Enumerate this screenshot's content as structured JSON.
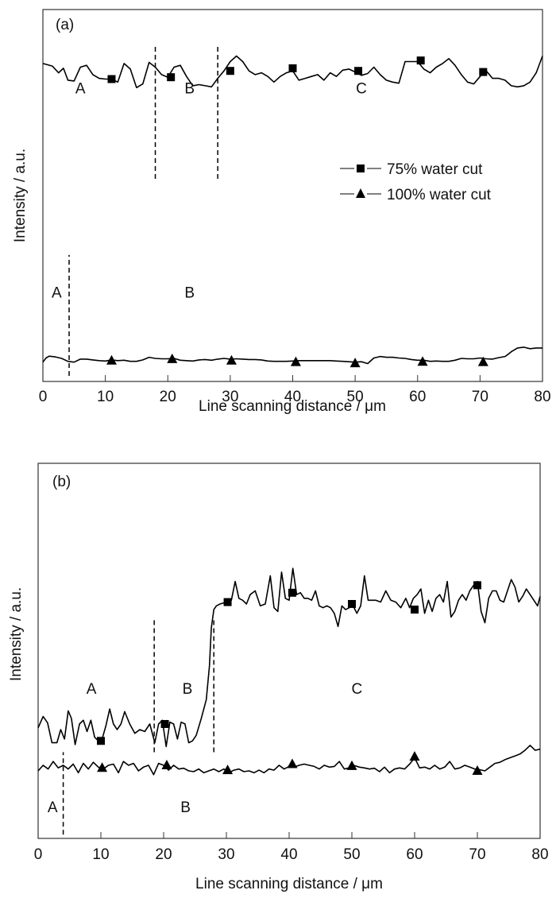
{
  "chart_data": [
    {
      "type": "line",
      "panel_label": "(a)",
      "xlabel": "Line scanning distance / μm",
      "ylabel": "Intensity / a.u.",
      "xlim": [
        0,
        80
      ],
      "ylim": [
        0,
        100
      ],
      "x_ticks": [
        0,
        10,
        20,
        30,
        40,
        50,
        60,
        70,
        80
      ],
      "x_tick_labels": [
        "0",
        "10",
        "20",
        "30",
        "40",
        "50",
        "60",
        "70",
        "80"
      ],
      "grid": false,
      "legend": {
        "placement": "center-right",
        "entries": [
          {
            "label": "75% water cut",
            "marker": "square"
          },
          {
            "label": "100% water cut",
            "marker": "triangle"
          }
        ]
      },
      "series": [
        {
          "name": "75% water cut",
          "marker": "square",
          "x": [
            0,
            1.5,
            2.5,
            3.3,
            4,
            5,
            6,
            7,
            8,
            9,
            10,
            11,
            12,
            13,
            14,
            15,
            16,
            17,
            18,
            19,
            20,
            21,
            22,
            23,
            24,
            25,
            26,
            27,
            28,
            29,
            30,
            31,
            32,
            33,
            34,
            35,
            36,
            37,
            38,
            39,
            40,
            41,
            42,
            43,
            44,
            45,
            46,
            47,
            48,
            49,
            50,
            51,
            52,
            53,
            54,
            55,
            56,
            57,
            58,
            59,
            60,
            61,
            62,
            63,
            64,
            65,
            66,
            67,
            68,
            69,
            70,
            71,
            72,
            73,
            74,
            75,
            76,
            77,
            78,
            79,
            80
          ],
          "y": [
            85.5,
            84.8,
            83,
            84.2,
            81,
            80.8,
            84.5,
            85,
            82.5,
            81.5,
            81.3,
            81.3,
            80.5,
            85.5,
            84,
            79,
            80,
            85.8,
            84.5,
            82.5,
            81.8,
            84.5,
            85,
            82,
            79.5,
            79.8,
            79.5,
            79.2,
            81.5,
            83.5,
            86,
            87.5,
            86,
            83.5,
            82.5,
            83,
            82,
            80.5,
            82,
            83,
            83.5,
            81,
            81.5,
            82,
            82.5,
            81,
            83,
            82,
            83.7,
            84,
            83.2,
            82.3,
            82.8,
            84.5,
            82.5,
            81,
            80.5,
            80.2,
            86,
            86,
            86,
            84,
            83,
            84.5,
            85.5,
            86.8,
            85,
            82.5,
            80.5,
            80,
            82,
            83.5,
            81.5,
            81.5,
            81,
            79.5,
            79.2,
            79.5,
            80.5,
            83,
            87.5
          ],
          "marker_x": [
            11,
            20.5,
            30,
            40,
            50.5,
            60.5,
            70.5
          ],
          "marker_y": [
            81.3,
            81.8,
            83.5,
            84.2,
            83.5,
            86.3,
            83.2
          ]
        },
        {
          "name": "100% water cut",
          "marker": "triangle",
          "x": [
            0,
            0.5,
            1,
            2,
            3,
            4,
            5,
            6,
            7,
            8,
            9,
            10,
            11,
            12,
            13,
            14,
            15,
            16,
            17,
            18,
            19,
            20,
            21,
            22,
            23,
            24,
            25,
            26,
            27,
            28,
            29,
            30,
            31,
            32,
            33,
            34,
            35,
            36,
            37,
            38,
            39,
            40,
            41,
            42,
            43,
            44,
            45,
            46,
            47,
            48,
            49,
            50,
            51,
            52,
            53,
            54,
            55,
            56,
            57,
            58,
            59,
            60,
            61,
            62,
            63,
            64,
            65,
            66,
            67,
            68,
            69,
            70,
            71,
            72,
            73,
            74,
            74.5,
            75,
            76,
            77,
            78,
            79,
            80
          ],
          "y": [
            5.2,
            6.3,
            6.8,
            6.6,
            6.2,
            5.4,
            5.2,
            6.0,
            6.0,
            5.8,
            5.6,
            5.5,
            5.8,
            5.6,
            5.7,
            5.4,
            5.4,
            5.8,
            6.5,
            6.2,
            6.1,
            6.1,
            6.2,
            5.7,
            5.6,
            5.5,
            5.8,
            5.9,
            5.7,
            6.0,
            6.2,
            6.0,
            6.1,
            6.0,
            5.9,
            5.9,
            5.8,
            5.5,
            5.4,
            5.4,
            5.4,
            5.5,
            5.6,
            5.6,
            5.6,
            5.6,
            5.6,
            5.6,
            5.5,
            5.4,
            5.3,
            5.2,
            5.3,
            4.8,
            6.3,
            6.7,
            6.5,
            6.5,
            6.3,
            6.2,
            5.9,
            5.7,
            5.7,
            5.4,
            5.5,
            5.4,
            5.4,
            5.7,
            6.2,
            6.1,
            6.1,
            6.3,
            6.1,
            6.0,
            6.4,
            6.7,
            7.3,
            8.0,
            9.0,
            9.2,
            8.8,
            9.0,
            9.0
          ],
          "marker_x": [
            11,
            20.7,
            30.2,
            40.5,
            50,
            60.8,
            70.5
          ],
          "marker_y": [
            5.6,
            6.0,
            5.6,
            5.2,
            4.9,
            5.3,
            5.2
          ]
        }
      ],
      "region_labels": [
        {
          "text": "A",
          "x": 6,
          "y": 79
        },
        {
          "text": "B",
          "x": 23.5,
          "y": 79
        },
        {
          "text": "C",
          "x": 51,
          "y": 79
        },
        {
          "text": "A",
          "x": 2.2,
          "y": 24
        },
        {
          "text": "B",
          "x": 23.5,
          "y": 24
        }
      ],
      "dividers": [
        {
          "x": 18,
          "y_from": 54.5,
          "y_to": 90
        },
        {
          "x": 28,
          "y_from": 54.5,
          "y_to": 90
        },
        {
          "x": 4.2,
          "y_from": 1.5,
          "y_to": 34
        }
      ]
    },
    {
      "type": "line",
      "panel_label": "(b)",
      "xlabel": "Line scanning distance / μm",
      "ylabel": "Intensity / a.u.",
      "xlim": [
        0,
        80
      ],
      "ylim": [
        0,
        100
      ],
      "x_ticks": [
        0,
        10,
        20,
        30,
        40,
        50,
        60,
        70,
        80
      ],
      "x_tick_labels": [
        "0",
        "10",
        "20",
        "30",
        "40",
        "50",
        "60",
        "70",
        "80"
      ],
      "grid": false,
      "series": [
        {
          "name": "75% water cut",
          "marker": "square",
          "x": [
            0,
            0.8,
            1.5,
            2.2,
            3,
            3.6,
            4.2,
            4.8,
            5.3,
            5.9,
            6.6,
            7.2,
            7.8,
            8.4,
            9.0,
            9.6,
            10.2,
            10.8,
            11.4,
            12.0,
            12.6,
            13.2,
            13.8,
            14.6,
            15.4,
            16.2,
            17.0,
            17.8,
            18.6,
            19.2,
            19.8,
            20.4,
            21.0,
            21.6,
            22.2,
            22.8,
            23.4,
            24.0,
            24.6,
            25.2,
            26.0,
            26.8,
            27.3,
            27.6,
            28.0,
            28.4,
            29.0,
            29.6,
            30.2,
            30.8,
            31.4,
            32.0,
            32.6,
            33.2,
            33.8,
            34.6,
            35.4,
            36.2,
            37.0,
            37.6,
            38.2,
            38.8,
            39.4,
            40.0,
            40.6,
            41.2,
            41.8,
            42.4,
            43.0,
            43.6,
            44.2,
            44.8,
            45.4,
            46.0,
            46.6,
            47.2,
            47.8,
            48.4,
            49.0,
            49.6,
            50.2,
            50.8,
            51.4,
            52.0,
            52.6,
            53.2,
            53.8,
            54.6,
            55.4,
            56.2,
            57.0,
            57.8,
            58.6,
            59.2,
            59.8,
            60.4,
            61.0,
            61.6,
            62.2,
            62.8,
            63.4,
            64.0,
            64.6,
            65.2,
            65.8,
            66.4,
            67.0,
            67.6,
            68.2,
            68.8,
            69.4,
            70.0,
            70.6,
            71.2,
            71.8,
            72.4,
            73.0,
            73.6,
            74.2,
            74.8,
            75.4,
            76.0,
            76.6,
            77.2,
            77.8,
            78.4,
            79.0,
            79.6,
            80
          ],
          "y": [
            29.5,
            32.5,
            30.8,
            25.5,
            25.5,
            29,
            26.5,
            34,
            32,
            25,
            30.5,
            31.5,
            28.5,
            31.5,
            27,
            26,
            26.5,
            30,
            34.5,
            30.5,
            29,
            30.5,
            33.8,
            30.5,
            28,
            29,
            28.5,
            30.5,
            25.5,
            30.5,
            31.5,
            24.5,
            31,
            30.5,
            26.5,
            31,
            30.5,
            25.5,
            26,
            27.5,
            32,
            37,
            46,
            56,
            61,
            62,
            62.5,
            62.8,
            62.5,
            63.5,
            68.5,
            64,
            63.5,
            62.5,
            65,
            66,
            62,
            62.5,
            70,
            61.5,
            60.5,
            71,
            64,
            63.5,
            72,
            65,
            65.5,
            64,
            64,
            63.5,
            66,
            62,
            61.5,
            62,
            61.5,
            60,
            56.5,
            62,
            61,
            61.5,
            62,
            60,
            62,
            70,
            63.5,
            63.5,
            63.5,
            63,
            66,
            63.5,
            63,
            61.5,
            64,
            61.5,
            64,
            65,
            66.5,
            60,
            63.5,
            60.5,
            64,
            65,
            63,
            68.5,
            59,
            60.5,
            63.5,
            65,
            63.5,
            66,
            67.5,
            68.5,
            60.5,
            57.5,
            64,
            66,
            66,
            63.5,
            63,
            66,
            69,
            67,
            63,
            64.5,
            66.5,
            65,
            63.5,
            62,
            64.5
          ],
          "marker_x": [
            10,
            20.2,
            30.2,
            40.5,
            50,
            60,
            70
          ],
          "marker_y": [
            26,
            30.5,
            63,
            65.5,
            62.5,
            61,
            67.5
          ]
        },
        {
          "name": "100% water cut",
          "marker": "triangle",
          "x": [
            0,
            0.8,
            1.6,
            2.4,
            3.2,
            4.0,
            4.8,
            5.6,
            6.4,
            7.2,
            8.0,
            8.8,
            9.6,
            10.4,
            11.2,
            12.0,
            12.8,
            13.6,
            14.4,
            15.2,
            16.0,
            16.8,
            17.6,
            18.4,
            19.2,
            20.0,
            20.8,
            21.6,
            22.4,
            23.2,
            24.0,
            24.8,
            25.6,
            26.4,
            27.2,
            28.0,
            28.8,
            29.6,
            30.4,
            31.2,
            32.0,
            32.8,
            33.6,
            34.4,
            35.2,
            36.0,
            36.8,
            37.6,
            38.4,
            39.2,
            40.0,
            40.8,
            41.6,
            42.4,
            43.2,
            44.0,
            44.8,
            45.6,
            46.4,
            47.2,
            48.0,
            48.8,
            49.6,
            50.4,
            51.2,
            52.0,
            52.8,
            53.6,
            54.4,
            55.2,
            56.0,
            56.8,
            57.6,
            58.4,
            59.2,
            60.0,
            60.8,
            61.6,
            62.4,
            63.2,
            64.0,
            64.8,
            65.6,
            66.4,
            67.2,
            68.0,
            68.8,
            69.6,
            70.4,
            71.2,
            72.0,
            72.8,
            73.6,
            74.4,
            75.2,
            76.0,
            76.8,
            77.6,
            78.4,
            79.2,
            80
          ],
          "y": [
            18,
            19.5,
            18.5,
            20.5,
            18.8,
            19.5,
            18.5,
            19.8,
            17.5,
            20,
            18.5,
            20.3,
            19,
            18.5,
            19.5,
            19.8,
            17.5,
            20.5,
            19.5,
            20,
            18,
            19,
            19.5,
            17,
            20,
            19.5,
            18.2,
            19.5,
            18.5,
            18.7,
            18,
            17.8,
            18.5,
            17.5,
            18,
            18.5,
            17.8,
            18.5,
            17.5,
            18.2,
            18.5,
            17.8,
            18,
            17.5,
            18.2,
            17.5,
            18.5,
            18.2,
            19.5,
            18.5,
            19.2,
            19,
            19.5,
            19.8,
            19.5,
            19.2,
            18.5,
            19.5,
            19,
            19.2,
            20.5,
            18.5,
            18.8,
            19.4,
            19,
            18.8,
            18.5,
            18.7,
            17.8,
            19,
            17.5,
            18.5,
            18.8,
            18.5,
            19.8,
            21.5,
            18.8,
            19,
            18.5,
            19.5,
            18.5,
            19,
            20.5,
            18.5,
            18.8,
            19.5,
            19,
            18.5,
            18.3,
            18,
            19,
            20,
            20.3,
            21,
            21.5,
            22,
            22.5,
            23.5,
            24.8,
            23.5,
            23.8
          ],
          "marker_x": [
            10.2,
            20.5,
            30.2,
            40.5,
            50,
            60,
            70
          ],
          "marker_y": [
            18.8,
            19.5,
            18.2,
            19.8,
            19.3,
            21.8,
            18.0
          ]
        }
      ],
      "region_labels": [
        {
          "text": "A",
          "x": 8.5,
          "y": 40
        },
        {
          "text": "B",
          "x": 23.8,
          "y": 40
        },
        {
          "text": "C",
          "x": 50.8,
          "y": 40
        },
        {
          "text": "A",
          "x": 2.3,
          "y": 8.5
        },
        {
          "text": "B",
          "x": 23.5,
          "y": 8.5
        }
      ],
      "dividers": [
        {
          "x": 18.5,
          "y_from": 23,
          "y_to": 59
        },
        {
          "x": 28,
          "y_from": 23,
          "y_to": 59
        },
        {
          "x": 4,
          "y_from": 1,
          "y_to": 23
        }
      ]
    }
  ]
}
